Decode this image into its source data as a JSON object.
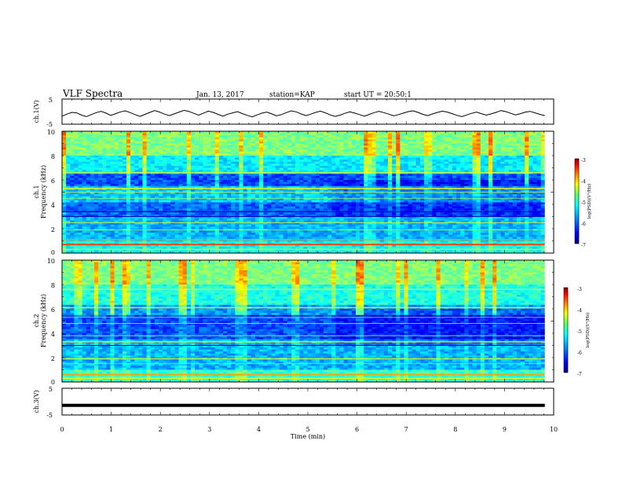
{
  "header": {
    "title": "VLF Spectra",
    "date": "Jan. 13, 2017",
    "station": "station=KAP",
    "start_ut": "start UT = 20:50:1"
  },
  "chart_data": [
    {
      "id": "ch1-voltage",
      "type": "line",
      "ylabel": "ch.1(V)",
      "ylim": [
        -5,
        5
      ],
      "yticks": [
        "5",
        "-5"
      ],
      "xlim": [
        0,
        10
      ],
      "series": [
        {
          "values": [
            -1.8,
            -1.0,
            -0.3,
            -0.5,
            -1.4,
            -2.0,
            -1.2,
            -0.4,
            0.1,
            -0.6,
            -1.5,
            -0.8,
            -0.1,
            0.3,
            -0.4,
            -1.2,
            -1.9,
            -1.1,
            -0.3,
            0.4,
            -0.2,
            -1.0,
            -1.6,
            -0.9,
            -0.2,
            0.5,
            0.1,
            -0.7,
            -1.4,
            -0.6,
            0.2,
            -0.3,
            -1.1,
            -1.8,
            -1.0,
            -0.5,
            0.0,
            -0.8,
            -1.5,
            -2.1,
            -1.3,
            -0.6,
            -0.2,
            -0.9,
            -1.7,
            -1.2,
            -0.4,
            0.3,
            -0.1,
            -0.9,
            -1.6,
            -1.0,
            -0.3,
            0.2,
            -0.5,
            -1.3,
            -1.9,
            -1.4,
            -0.7,
            -0.1,
            -0.6,
            -1.2,
            -1.8,
            -1.1,
            -0.4,
            0.1,
            -0.4,
            -1.0,
            -1.7,
            -1.2,
            -0.6,
            0.0,
            0.3,
            -0.3,
            -1.1,
            -1.6,
            -0.9,
            -0.3,
            0.2,
            -0.2,
            -0.8,
            -1.5,
            -2.0,
            -1.3,
            -0.7,
            -0.2,
            -0.8,
            -1.4,
            -0.9,
            -0.3,
            0.4,
            0.0,
            -0.7,
            -1.3,
            -0.8,
            -0.2,
            0.1,
            -0.5,
            -1.1,
            -1.6
          ]
        }
      ],
      "xticks": [
        "0",
        "1",
        "2",
        "3",
        "4",
        "5",
        "6",
        "7",
        "8",
        "9",
        "10"
      ]
    },
    {
      "id": "ch1-spectrogram",
      "type": "heatmap",
      "ylabel": "Frequency (kHz)",
      "channel_label": "ch.1",
      "ylim": [
        0,
        10
      ],
      "yticks": [
        "0",
        "2",
        "4",
        "6",
        "8",
        "10"
      ],
      "xlim": [
        0,
        10
      ],
      "colorbar": {
        "label": "log(PSD)(V²/Hz)",
        "ticks": [
          "-3",
          "-4",
          "-5",
          "-6",
          "-7"
        ],
        "range": [
          -7,
          -3
        ]
      }
    },
    {
      "id": "ch2-spectrogram",
      "type": "heatmap",
      "ylabel": "Frequency (kHz)",
      "channel_label": "ch.2",
      "ylim": [
        0,
        10
      ],
      "yticks": [
        "0",
        "2",
        "4",
        "6",
        "8",
        "10"
      ],
      "xlim": [
        0,
        10
      ],
      "colorbar": {
        "label": "log(PSD)(V²/Hz)",
        "ticks": [
          "-3",
          "-4",
          "-5",
          "-6",
          "-7"
        ],
        "range": [
          -7,
          -3
        ]
      }
    },
    {
      "id": "ch3-voltage",
      "type": "line",
      "ylabel": "ch.3(V)",
      "ylim": [
        -5,
        5
      ],
      "yticks": [
        "5",
        "-5"
      ],
      "xlim": [
        0,
        10
      ],
      "xlabel": "Time (min)",
      "xticks": [
        "0",
        "1",
        "2",
        "3",
        "4",
        "5",
        "6",
        "7",
        "8",
        "9",
        "10"
      ],
      "series": [
        {
          "values": [
            -1.4,
            -1.4
          ]
        }
      ]
    }
  ],
  "colors": {
    "frame": "#000000",
    "background": "#ffffff",
    "colormap": [
      "#000080",
      "#0000ff",
      "#0080ff",
      "#00ffff",
      "#80ff80",
      "#ffff00",
      "#ff8000",
      "#ff0000",
      "#800000"
    ]
  }
}
